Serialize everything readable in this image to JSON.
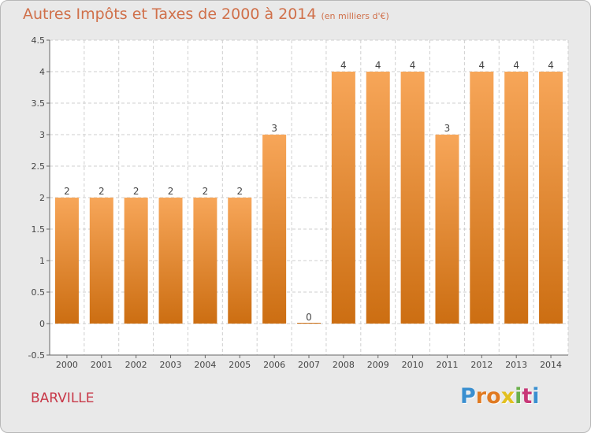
{
  "header": {
    "title": "Autres Impôts et Taxes de 2000 à 2014",
    "unit": "(en milliers d'€)"
  },
  "footer": {
    "town": "BARVILLE",
    "logo_letters": [
      "P",
      "r",
      "o",
      "x",
      "i",
      "t",
      "i"
    ],
    "logo_colors": [
      "#3a8fd0",
      "#e07a22",
      "#e07a22",
      "#e2c020",
      "#6ab04a",
      "#c83878",
      "#3a8fd0"
    ]
  },
  "chart_data": {
    "type": "bar",
    "title": "Autres Impôts et Taxes de 2000 à 2014",
    "subtitle": "(en milliers d'€)",
    "categories": [
      "2000",
      "2001",
      "2002",
      "2003",
      "2004",
      "2005",
      "2006",
      "2007",
      "2008",
      "2009",
      "2010",
      "2011",
      "2012",
      "2013",
      "2014"
    ],
    "values": [
      2,
      2,
      2,
      2,
      2,
      2,
      3,
      0,
      4,
      4,
      4,
      3,
      4,
      4,
      4
    ],
    "data_labels": [
      "2",
      "2",
      "2",
      "2",
      "2",
      "2",
      "3",
      "0",
      "4",
      "4",
      "4",
      "3",
      "4",
      "4",
      "4"
    ],
    "yticks": [
      -0.5,
      0,
      0.5,
      1,
      1.5,
      2,
      2.5,
      3,
      3.5,
      4,
      4.5
    ],
    "ytick_labels": [
      "-0.5",
      "0",
      "0.5",
      "1",
      "1.5",
      "2",
      "2.5",
      "3",
      "3.5",
      "4",
      "4.5"
    ],
    "ylim": [
      -0.5,
      4.5
    ],
    "grid": true,
    "colors": {
      "bar_light": "#f7a659",
      "bar_dark": "#cc6e12",
      "grid": "#cfcfcf",
      "plot_bg": "#ffffff",
      "text": "#444444"
    }
  }
}
